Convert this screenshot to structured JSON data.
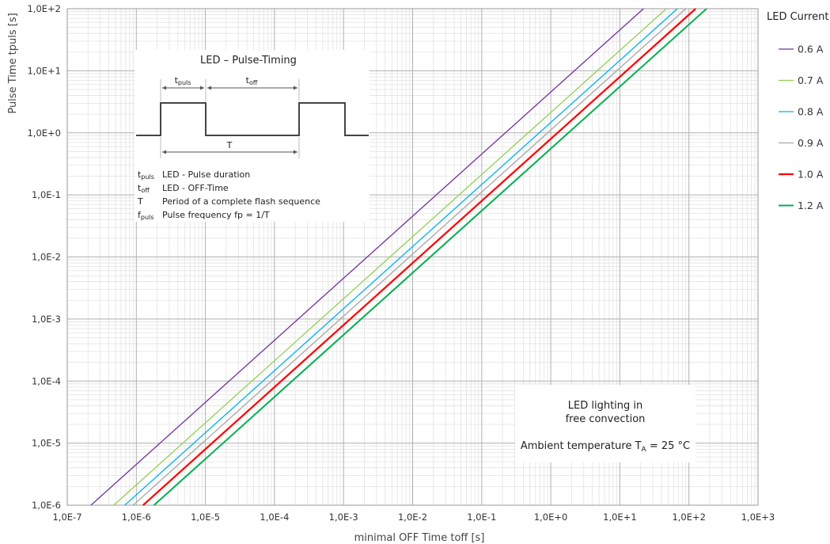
{
  "chart_data": {
    "type": "line",
    "xlabel": "minimal OFF Time  toff [s]",
    "ylabel": "Pulse Time  tpuls [s]",
    "x_scale": "log",
    "y_scale": "log",
    "xlim": [
      1e-07,
      1000
    ],
    "ylim": [
      1e-06,
      100
    ],
    "grid": true,
    "x_ticks": [
      {
        "value": 1e-07,
        "label": "1,0E-7"
      },
      {
        "value": 1e-06,
        "label": "1,0E-6"
      },
      {
        "value": 1e-05,
        "label": "1,0E-5"
      },
      {
        "value": 0.0001,
        "label": "1,0E-4"
      },
      {
        "value": 0.001,
        "label": "1,0E-3"
      },
      {
        "value": 0.01,
        "label": "1,0E-2"
      },
      {
        "value": 0.1,
        "label": "1,0E-1"
      },
      {
        "value": 1,
        "label": "1,0E+0"
      },
      {
        "value": 10,
        "label": "1,0E+1"
      },
      {
        "value": 100,
        "label": "1,0E+2"
      },
      {
        "value": 1000,
        "label": "1,0E+3"
      }
    ],
    "y_ticks": [
      {
        "value": 1e-06,
        "label": "1,0E-6"
      },
      {
        "value": 1e-05,
        "label": "1,0E-5"
      },
      {
        "value": 0.0001,
        "label": "1,0E-4"
      },
      {
        "value": 0.001,
        "label": "1,0E-3"
      },
      {
        "value": 0.01,
        "label": "1,0E-2"
      },
      {
        "value": 0.1,
        "label": "1,0E-1"
      },
      {
        "value": 1,
        "label": "1,0E+0"
      },
      {
        "value": 10,
        "label": "1,0E+1"
      },
      {
        "value": 100,
        "label": "1,0E+2"
      }
    ],
    "legend_title": "LED Current",
    "legend_position": "right",
    "series": [
      {
        "name": "0.6 A",
        "color": "#7030a0",
        "width": 1.3,
        "x": [
          2.2e-07,
          22
        ],
        "y": [
          1e-06,
          100
        ]
      },
      {
        "name": "0.7 A",
        "color": "#92d050",
        "width": 1.3,
        "x": [
          4.7e-07,
          47
        ],
        "y": [
          1e-06,
          100
        ]
      },
      {
        "name": "0.8 A",
        "color": "#00b0f0",
        "width": 1.3,
        "x": [
          6.8e-07,
          68
        ],
        "y": [
          1e-06,
          100
        ]
      },
      {
        "name": "0.9 A",
        "color": "#a6a6a6",
        "width": 1.3,
        "x": [
          9e-07,
          90
        ],
        "y": [
          1e-06,
          100
        ]
      },
      {
        "name": "1.0 A",
        "color": "#ff0000",
        "width": 2.2,
        "x": [
          1.25e-06,
          125
        ],
        "y": [
          1e-06,
          100
        ]
      },
      {
        "name": "1.2 A",
        "color": "#00b050",
        "width": 2.0,
        "x": [
          1.8e-06,
          180
        ],
        "y": [
          1e-06,
          100
        ]
      }
    ],
    "annotations": {
      "pulse_box": {
        "title": "LED – Pulse-Timing",
        "tpuls_label": "t",
        "tpuls_sub": "puls",
        "toff_label": "t",
        "toff_sub": "off",
        "period_label": "T",
        "definitions": [
          {
            "sym": "t",
            "sub": "puls",
            "text": "LED - Pulse duration"
          },
          {
            "sym": "t",
            "sub": "off",
            "text": "LED - OFF-Time"
          },
          {
            "sym": "T",
            "sub": "",
            "text": "Period of a complete flash sequence"
          },
          {
            "sym": "f",
            "sub": "puls",
            "text": "Pulse frequency fp = 1/T"
          }
        ]
      },
      "note_box": {
        "line1": "LED lighting in",
        "line2": "free convection",
        "line3_prefix": "Ambient temperature T",
        "line3_sub": "A",
        "line3_suffix": " = 25 °C"
      }
    }
  }
}
